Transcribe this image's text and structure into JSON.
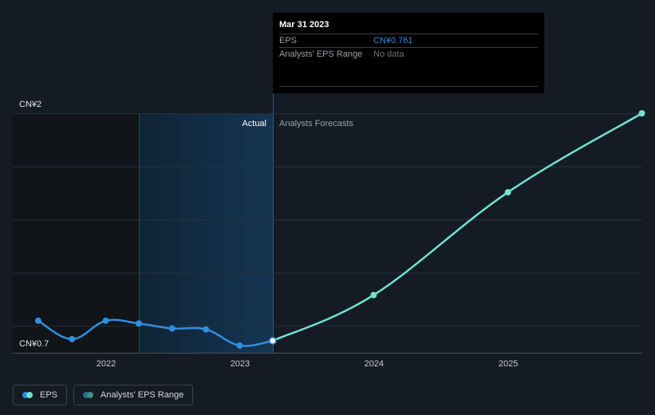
{
  "chart_data": {
    "type": "line",
    "y_top_label": "CN¥2",
    "y_bottom_label": "CN¥0.7",
    "ylim": [
      0.7,
      2.0
    ],
    "x_ticks": [
      "2022",
      "2023",
      "2024",
      "2025"
    ],
    "region_labels": {
      "actual": "Actual",
      "forecast": "Analysts Forecasts"
    },
    "series": [
      {
        "name": "EPS",
        "color": "#2f8fe0",
        "points": [
          {
            "x": "2021-06-30",
            "y": 0.87
          },
          {
            "x": "2021-09-30",
            "y": 0.77
          },
          {
            "x": "2021-12-31",
            "y": 0.87
          },
          {
            "x": "2022-03-31",
            "y": 0.855
          },
          {
            "x": "2022-06-30",
            "y": 0.828
          },
          {
            "x": "2022-09-30",
            "y": 0.823
          },
          {
            "x": "2022-12-31",
            "y": 0.735
          },
          {
            "x": "2023-03-31",
            "y": 0.761
          }
        ]
      },
      {
        "name": "Analysts' EPS Forecast",
        "color": "#6fe3d0",
        "points": [
          {
            "x": "2023-03-31",
            "y": 0.761
          },
          {
            "x": "2023-12-31",
            "y": 1.01
          },
          {
            "x": "2024-12-31",
            "y": 1.57
          },
          {
            "x": "2025-12-31",
            "y": 2.0
          }
        ]
      }
    ],
    "grid": true
  },
  "tooltip": {
    "date": "Mar 31 2023",
    "eps_label": "EPS",
    "eps_value": "CN¥0.761",
    "range_label": "Analysts' EPS Range",
    "range_value": "No data"
  },
  "legend": {
    "eps_label": "EPS",
    "range_label": "Analysts' EPS Range",
    "eps_colors": [
      "#2f8fe0",
      "#6fe3d0"
    ],
    "range_colors": [
      "#2b6a8a",
      "#3d8f88"
    ]
  }
}
